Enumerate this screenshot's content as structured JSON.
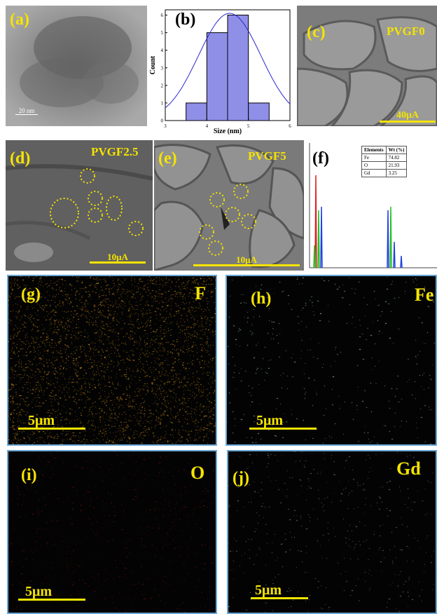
{
  "panels": {
    "a": {
      "label": "(a)",
      "scale": "20 nm"
    },
    "b": {
      "label": "(b)"
    },
    "c": {
      "label": "(c)",
      "sample": "PVGF0",
      "scale": "40μA"
    },
    "d": {
      "label": "(d)",
      "sample": "PVGF2.5",
      "scale": "10μA"
    },
    "e": {
      "label": "(e)",
      "sample": "PVGF5",
      "scale": "10μA"
    },
    "f": {
      "label": "(f)"
    },
    "g": {
      "label": "(g)",
      "element": "F",
      "scale": "5μm",
      "dot_color": "#c98a1a"
    },
    "h": {
      "label": "(h)",
      "element": "Fe",
      "scale": "5μm",
      "dot_color": "#9fd0c0"
    },
    "i": {
      "label": "(i)",
      "element": "O",
      "scale": "5μm",
      "dot_color": "#7a1010"
    },
    "j": {
      "label": "(j)",
      "element": "Gd",
      "scale": "5μm",
      "dot_color": "#8fa0b0"
    }
  },
  "chart_data": [
    {
      "type": "bar",
      "panel": "b",
      "xlabel": "Size (nm)",
      "ylabel": "Count",
      "x_ticks": [
        "3",
        "4",
        "5",
        "6"
      ],
      "y_ticks": [
        "0",
        "1",
        "2",
        "3",
        "4",
        "5",
        "6"
      ],
      "xlim": [
        3,
        6
      ],
      "ylim": [
        0,
        6.3
      ],
      "bins": [
        {
          "from": 3.5,
          "to": 4.0,
          "count": 1
        },
        {
          "from": 4.0,
          "to": 4.5,
          "count": 5
        },
        {
          "from": 4.5,
          "to": 5.0,
          "count": 6
        },
        {
          "from": 5.0,
          "to": 5.5,
          "count": 1
        }
      ],
      "fit": {
        "type": "gaussian",
        "mean": 4.55,
        "sigma": 0.75,
        "peak": 6.1
      },
      "bar_color": "#8f8fe8",
      "curve_color": "#2b2bd0"
    },
    {
      "type": "table",
      "panel": "f",
      "columns": [
        "Elements",
        "Wt (%)"
      ],
      "rows": [
        [
          "Fe",
          "74.82"
        ],
        [
          "O",
          "21.93"
        ],
        [
          "Gd",
          "3.25"
        ]
      ]
    }
  ]
}
